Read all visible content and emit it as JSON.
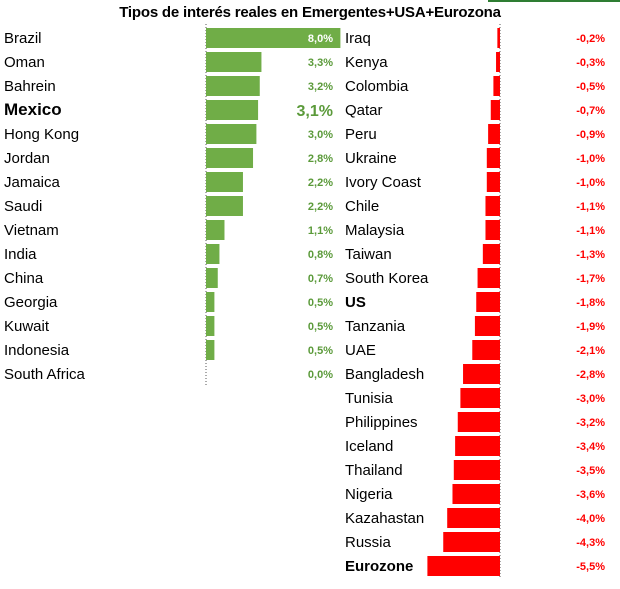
{
  "colors": {
    "positive": "#70ad47",
    "negative": "#ff0000",
    "positive_text": "#5b9a3a",
    "negative_text": "#ff0000",
    "top_rule": "#2e7d32"
  },
  "chart_data": [
    {
      "type": "bar",
      "orientation": "horizontal",
      "title": "Tipos de interés reales en Emergentes+USA+Eurozona",
      "categories": [
        "Brazil",
        "Oman",
        "Bahrein",
        "Mexico",
        "Hong Kong",
        "Jordan",
        "Jamaica",
        "Saudi",
        "Vietnam",
        "India",
        "China",
        "Georgia",
        "Kuwait",
        "Indonesia",
        "South Africa"
      ],
      "values": [
        8.0,
        3.3,
        3.2,
        3.1,
        3.0,
        2.8,
        2.2,
        2.2,
        1.1,
        0.8,
        0.7,
        0.5,
        0.5,
        0.5,
        0.0
      ],
      "value_labels": [
        "8,0%",
        "3,3%",
        "3,2%",
        "3,1%",
        "3,0%",
        "2,8%",
        "2,2%",
        "2,2%",
        "1,1%",
        "0,8%",
        "0,7%",
        "0,5%",
        "0,5%",
        "0,5%",
        "0,0%"
      ],
      "highlighted": [
        "Mexico"
      ],
      "color": "#70ad47",
      "unit": "%"
    },
    {
      "type": "bar",
      "orientation": "horizontal",
      "categories": [
        "Iraq",
        "Kenya",
        "Colombia",
        "Qatar",
        "Peru",
        "Ukraine",
        "Ivory Coast",
        "Chile",
        "Malaysia",
        "Taiwan",
        "South Korea",
        "US",
        "Tanzania",
        "UAE",
        "Bangladesh",
        "Tunisia",
        "Philippines",
        "Iceland",
        "Thailand",
        "Nigeria",
        "Kazahastan",
        "Russia",
        "Eurozone"
      ],
      "values": [
        -0.2,
        -0.3,
        -0.5,
        -0.7,
        -0.9,
        -1.0,
        -1.0,
        -1.1,
        -1.1,
        -1.3,
        -1.7,
        -1.8,
        -1.9,
        -2.1,
        -2.8,
        -3.0,
        -3.2,
        -3.4,
        -3.5,
        -3.6,
        -4.0,
        -4.3,
        -5.5
      ],
      "value_labels": [
        "-0,2%",
        "-0,3%",
        "-0,5%",
        "-0,7%",
        "-0,9%",
        "-1,0%",
        "-1,0%",
        "-1,1%",
        "-1,1%",
        "-1,3%",
        "-1,7%",
        "-1,8%",
        "-1,9%",
        "-2,1%",
        "-2,8%",
        "-3,0%",
        "-3,2%",
        "-3,4%",
        "-3,5%",
        "-3,6%",
        "-4,0%",
        "-4,3%",
        "-5,5%"
      ],
      "highlighted": [
        "US",
        "Eurozone"
      ],
      "color": "#ff0000",
      "unit": "%"
    }
  ]
}
